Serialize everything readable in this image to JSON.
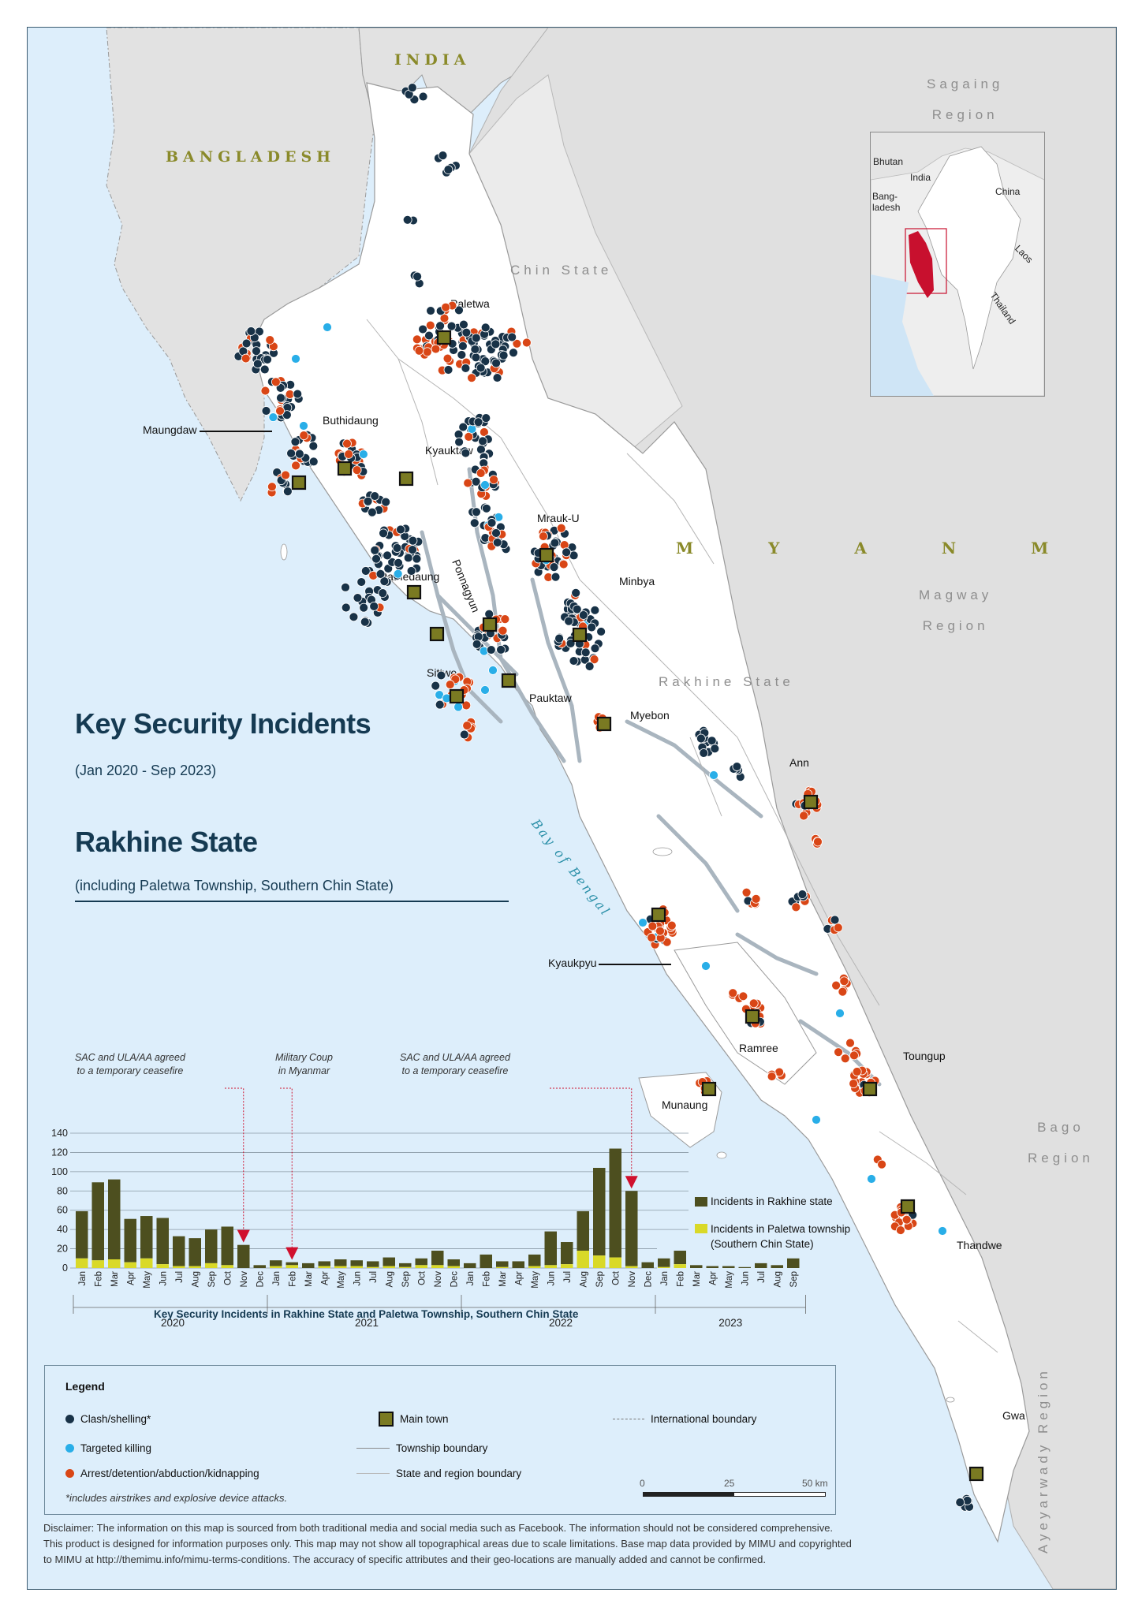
{
  "title": "Key Security Incidents",
  "title_period": "(Jan 2020 - Sep 2023)",
  "subtitle": "Rakhine State",
  "subtitle_note": "(including Paletwa Township, Southern Chin State)",
  "map_labels": {
    "countries": [
      "INDIA",
      "BANGLADESH",
      "M Y A N M A R"
    ],
    "regions": {
      "sagaing": "Sagaing\nRegion",
      "chin": "Chin State",
      "magway": "Magway\nRegion",
      "rakhine": "Rakhine State",
      "bago": "Bago\nRegion",
      "ayeyarwady": "Ayeyarwady Region"
    },
    "bay": "Bay of Bengal",
    "towns": [
      "Paletwa",
      "Maungdaw",
      "Buthidaung",
      "Kyauktaw",
      "Mrauk-U",
      "Rathedaung",
      "Ponnagyun",
      "Minbya",
      "Sittwe",
      "Pauktaw",
      "Myebon",
      "Ann",
      "Kyaukpyu",
      "Ramree",
      "Munaung",
      "Toungup",
      "Thandwe",
      "Gwa"
    ]
  },
  "inset": {
    "labels": [
      "Bhutan",
      "India",
      "Bang-\nladesh",
      "China",
      "Laos",
      "Thailand"
    ],
    "highlight_color": "#c8102e"
  },
  "chart_data": {
    "type": "bar",
    "title": "Key Security Incidents in Rakhine State and Paletwa Township, Southern Chin State",
    "stacked": true,
    "ylim": [
      0,
      140
    ],
    "yticks": [
      0,
      20,
      40,
      60,
      80,
      100,
      120,
      140
    ],
    "categories": [
      "Jan",
      "Feb",
      "Mar",
      "Apr",
      "May",
      "Jun",
      "Jul",
      "Aug",
      "Sep",
      "Oct",
      "Nov",
      "Dec",
      "Jan",
      "Feb",
      "Mar",
      "Apr",
      "May",
      "Jun",
      "Jul",
      "Aug",
      "Sep",
      "Oct",
      "Nov",
      "Dec",
      "Jan",
      "Feb",
      "Mar",
      "Apr",
      "May",
      "Jun",
      "Jul",
      "Aug",
      "Sep",
      "Oct",
      "Nov",
      "Dec",
      "Jan",
      "Feb",
      "Mar",
      "Apr",
      "May",
      "Jun",
      "Jul",
      "Aug",
      "Sep"
    ],
    "years": [
      "2020",
      "2021",
      "2022",
      "2023"
    ],
    "series": [
      {
        "name": "Incidents in Rakhine state",
        "color": "#4d4f1f",
        "values": [
          49,
          81,
          83,
          45,
          44,
          48,
          31,
          29,
          35,
          40,
          24,
          3,
          6,
          3,
          5,
          5,
          7,
          6,
          6,
          9,
          4,
          7,
          15,
          7,
          5,
          14,
          6,
          7,
          12,
          35,
          23,
          41,
          91,
          113,
          78,
          6,
          9,
          14,
          3,
          2,
          2,
          1,
          5,
          3,
          10
        ]
      },
      {
        "name": "Incidents in Paletwa township\n(Southern Chin State)",
        "color": "#d9d928",
        "values": [
          10,
          8,
          9,
          6,
          10,
          4,
          2,
          2,
          5,
          3,
          0,
          0,
          2,
          3,
          0,
          2,
          2,
          2,
          1,
          2,
          1,
          3,
          3,
          2,
          0,
          0,
          1,
          0,
          2,
          3,
          4,
          18,
          13,
          11,
          2,
          0,
          1,
          4,
          0,
          0,
          0,
          0,
          0,
          0,
          0
        ]
      }
    ],
    "annotations": [
      {
        "text": "SAC and ULA/AA agreed\nto a temporary ceasefire",
        "at_index": 10
      },
      {
        "text": "Military Coup\nin Myanmar",
        "at_index": 13
      },
      {
        "text": "SAC and ULA/AA agreed\nto a temporary ceasefire",
        "at_index": 34
      }
    ]
  },
  "legend": {
    "heading": "Legend",
    "items": {
      "clash": "Clash/shelling*",
      "targeted": "Targeted killing",
      "arrest": "Arrest/detention/abduction/kidnapping",
      "main_town": "Main town",
      "township": "Township boundary",
      "state": "State and region boundary",
      "international": "International boundary"
    },
    "footnote": "*includes airstrikes and explosive device attacks.",
    "scale": [
      "0",
      "25",
      "50 km"
    ],
    "colors": {
      "clash": "#183247",
      "targeted": "#29aee8",
      "arrest": "#d94616",
      "main_town": "#7a7a22"
    }
  },
  "disclaimer": [
    "Disclaimer: The information on this map is sourced from both traditional media and social media such as Facebook. The information should not be considered comprehensive.",
    "This product is designed for information purposes only. This map may not show all topographical areas due to scale limitations. Base map data provided by MIMU and copyrighted",
    "to MIMU at http://themimu.info/mimu-terms-conditions. The accuracy of specific attributes and their geo-locations are manually added and cannot be confirmed."
  ]
}
